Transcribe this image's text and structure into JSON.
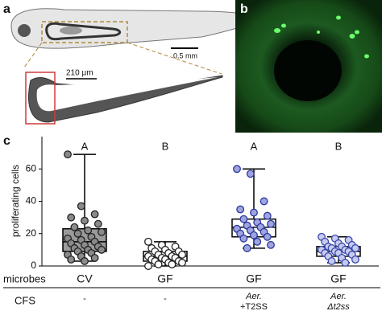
{
  "panels": {
    "a": {
      "label": "a",
      "scale_bar": "0.5 mm",
      "gut_length": "210 µm"
    },
    "b": {
      "label": "b"
    },
    "c": {
      "label": "c"
    }
  },
  "chart_data": {
    "type": "box",
    "y_label": "proliferating cells",
    "x_label": "microbes",
    "row_label": "CFS",
    "categories": [
      "CV",
      "GF",
      "GF",
      "GF"
    ],
    "cfs": [
      [
        "-"
      ],
      [
        "-"
      ],
      [
        "Aer.",
        "+T2SS"
      ],
      [
        "Aer.",
        "Δt2ss"
      ]
    ],
    "significance": [
      "A",
      "B",
      "A",
      "B"
    ],
    "ylim": [
      0,
      80
    ],
    "yticks": [
      0,
      20,
      40,
      60
    ],
    "boxes": [
      {
        "min": 3,
        "q1": 9,
        "median": 15,
        "q3": 23,
        "max": 69,
        "color": "#9a9a9a",
        "point_color": "#8a8a8a",
        "edge_color": "#222222",
        "points": [
          69,
          37,
          32,
          30,
          28,
          26,
          24,
          22,
          21,
          20,
          18,
          17,
          16,
          15,
          14,
          13,
          12,
          11,
          10,
          10,
          9,
          8,
          7,
          6,
          5,
          4,
          3
        ]
      },
      {
        "min": 0,
        "q1": 3,
        "median": 6,
        "q3": 9,
        "max": 15,
        "color": "#ffffff",
        "point_color": "#ffffff",
        "edge_color": "#222222",
        "points": [
          15,
          13,
          12,
          11,
          10,
          9,
          9,
          8,
          7,
          7,
          6,
          6,
          5,
          5,
          4,
          4,
          3,
          3,
          2,
          2,
          1,
          1,
          0
        ]
      },
      {
        "min": 11,
        "q1": 18,
        "median": 24,
        "q3": 29,
        "max": 60,
        "color": "#ffffff",
        "point_color": "#9fa3e0",
        "edge_color": "#2b3a9a",
        "points": [
          60,
          57,
          40,
          35,
          33,
          31,
          29,
          27,
          26,
          25,
          24,
          23,
          22,
          21,
          20,
          19,
          18,
          17,
          15,
          13,
          11
        ]
      },
      {
        "min": 2,
        "q1": 6,
        "median": 9,
        "q3": 12,
        "max": 18,
        "color": "#ffffff",
        "point_color": "#c8cbf0",
        "edge_color": "#3a4aaa",
        "points": [
          18,
          17,
          16,
          15,
          14,
          13,
          12,
          12,
          11,
          11,
          10,
          10,
          9,
          9,
          8,
          8,
          7,
          6,
          5,
          4,
          3,
          2
        ]
      }
    ]
  }
}
